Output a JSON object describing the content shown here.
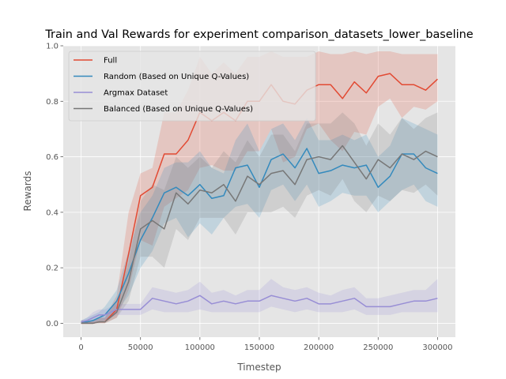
{
  "chart_data": {
    "type": "line",
    "title": "Train and Val Rewards for experiment comparison_datasets_lower_baseline",
    "xlabel": "Timestep",
    "ylabel": "Rewards",
    "xlim": [
      -15000,
      315000
    ],
    "ylim": [
      -0.05,
      1.0
    ],
    "xticks": [
      0,
      50000,
      100000,
      150000,
      200000,
      250000,
      300000
    ],
    "xtick_labels": [
      "0",
      "50000",
      "100000",
      "150000",
      "200000",
      "250000",
      "300000"
    ],
    "yticks": [
      0.0,
      0.2,
      0.4,
      0.6,
      0.8,
      1.0
    ],
    "ytick_labels": [
      "0.0",
      "0.2",
      "0.4",
      "0.6",
      "0.8",
      "1.0"
    ],
    "grid": true,
    "legend_position": "top-left",
    "x": [
      0,
      5000,
      10000,
      15000,
      20000,
      30000,
      40000,
      50000,
      60000,
      70000,
      80000,
      90000,
      100000,
      110000,
      120000,
      130000,
      140000,
      150000,
      160000,
      170000,
      180000,
      190000,
      200000,
      210000,
      220000,
      230000,
      240000,
      250000,
      260000,
      270000,
      280000,
      290000,
      300000
    ],
    "series": [
      {
        "name": "Full",
        "color": "#E24A33",
        "values": [
          0.0,
          0.0,
          0.0,
          0.005,
          0.005,
          0.05,
          0.25,
          0.46,
          0.49,
          0.61,
          0.61,
          0.66,
          0.76,
          0.73,
          0.76,
          0.73,
          0.8,
          0.8,
          0.86,
          0.8,
          0.79,
          0.84,
          0.86,
          0.86,
          0.81,
          0.87,
          0.83,
          0.89,
          0.9,
          0.86,
          0.86,
          0.84,
          0.88
        ],
        "lower": [
          0.0,
          0.0,
          0.0,
          0.0,
          0.0,
          0.02,
          0.12,
          0.3,
          0.28,
          0.42,
          0.45,
          0.48,
          0.56,
          0.57,
          0.55,
          0.55,
          0.62,
          0.62,
          0.7,
          0.58,
          0.6,
          0.7,
          0.72,
          0.66,
          0.62,
          0.69,
          0.68,
          0.78,
          0.81,
          0.74,
          0.78,
          0.77,
          0.8
        ],
        "upper": [
          0.01,
          0.01,
          0.01,
          0.02,
          0.02,
          0.1,
          0.4,
          0.54,
          0.56,
          0.76,
          0.76,
          0.84,
          0.96,
          0.9,
          0.94,
          0.9,
          0.96,
          0.96,
          0.98,
          0.96,
          0.96,
          0.96,
          0.98,
          0.97,
          0.97,
          0.98,
          0.97,
          0.98,
          0.98,
          0.97,
          0.97,
          0.97,
          0.97
        ]
      },
      {
        "name": "Random (Based on Unique Q-Values)",
        "color": "#348ABD",
        "values": [
          0.005,
          0.005,
          0.01,
          0.02,
          0.03,
          0.08,
          0.18,
          0.3,
          0.38,
          0.47,
          0.49,
          0.46,
          0.5,
          0.45,
          0.46,
          0.56,
          0.57,
          0.49,
          0.59,
          0.61,
          0.56,
          0.63,
          0.54,
          0.55,
          0.57,
          0.56,
          0.57,
          0.49,
          0.53,
          0.61,
          0.61,
          0.56,
          0.54
        ],
        "lower": [
          0.0,
          0.0,
          0.0,
          0.0,
          0.01,
          0.04,
          0.1,
          0.2,
          0.26,
          0.36,
          0.38,
          0.31,
          0.36,
          0.32,
          0.38,
          0.42,
          0.43,
          0.38,
          0.48,
          0.5,
          0.44,
          0.5,
          0.42,
          0.44,
          0.47,
          0.46,
          0.46,
          0.4,
          0.44,
          0.48,
          0.5,
          0.44,
          0.42
        ],
        "upper": [
          0.01,
          0.02,
          0.03,
          0.04,
          0.06,
          0.12,
          0.26,
          0.4,
          0.46,
          0.56,
          0.58,
          0.58,
          0.62,
          0.56,
          0.54,
          0.66,
          0.72,
          0.62,
          0.7,
          0.72,
          0.66,
          0.74,
          0.66,
          0.66,
          0.68,
          0.66,
          0.68,
          0.6,
          0.64,
          0.74,
          0.72,
          0.7,
          0.68
        ]
      },
      {
        "name": "Argmax Dataset",
        "color": "#988ED5",
        "values": [
          0.005,
          0.01,
          0.02,
          0.03,
          0.03,
          0.05,
          0.05,
          0.05,
          0.09,
          0.08,
          0.07,
          0.08,
          0.1,
          0.07,
          0.08,
          0.07,
          0.08,
          0.08,
          0.1,
          0.09,
          0.08,
          0.09,
          0.07,
          0.07,
          0.08,
          0.09,
          0.06,
          0.06,
          0.06,
          0.07,
          0.08,
          0.08,
          0.09
        ],
        "lower": [
          0.0,
          0.0,
          0.0,
          0.01,
          0.01,
          0.03,
          0.03,
          0.03,
          0.05,
          0.04,
          0.04,
          0.04,
          0.05,
          0.04,
          0.04,
          0.04,
          0.04,
          0.04,
          0.06,
          0.05,
          0.04,
          0.05,
          0.04,
          0.04,
          0.04,
          0.05,
          0.03,
          0.03,
          0.03,
          0.04,
          0.04,
          0.04,
          0.04
        ],
        "upper": [
          0.01,
          0.02,
          0.04,
          0.05,
          0.05,
          0.07,
          0.07,
          0.07,
          0.13,
          0.12,
          0.11,
          0.12,
          0.15,
          0.11,
          0.12,
          0.1,
          0.12,
          0.12,
          0.16,
          0.13,
          0.12,
          0.13,
          0.11,
          0.1,
          0.12,
          0.13,
          0.09,
          0.09,
          0.1,
          0.11,
          0.12,
          0.12,
          0.16
        ]
      },
      {
        "name": "Balanced (Based on Unique Q-Values)",
        "color": "#777777",
        "values": [
          0.0,
          0.0,
          0.0,
          0.005,
          0.005,
          0.04,
          0.15,
          0.34,
          0.37,
          0.34,
          0.47,
          0.43,
          0.48,
          0.47,
          0.5,
          0.44,
          0.53,
          0.5,
          0.54,
          0.55,
          0.5,
          0.59,
          0.6,
          0.59,
          0.64,
          0.58,
          0.52,
          0.59,
          0.56,
          0.61,
          0.59,
          0.62,
          0.6
        ],
        "lower": [
          0.0,
          0.0,
          0.0,
          0.0,
          0.0,
          0.02,
          0.08,
          0.24,
          0.24,
          0.2,
          0.34,
          0.3,
          0.38,
          0.38,
          0.38,
          0.32,
          0.4,
          0.4,
          0.4,
          0.42,
          0.38,
          0.46,
          0.48,
          0.46,
          0.52,
          0.44,
          0.4,
          0.46,
          0.44,
          0.48,
          0.47,
          0.5,
          0.46
        ],
        "upper": [
          0.01,
          0.01,
          0.01,
          0.02,
          0.02,
          0.08,
          0.22,
          0.44,
          0.5,
          0.48,
          0.6,
          0.56,
          0.6,
          0.56,
          0.62,
          0.58,
          0.66,
          0.6,
          0.68,
          0.68,
          0.62,
          0.72,
          0.72,
          0.72,
          0.76,
          0.72,
          0.64,
          0.72,
          0.68,
          0.74,
          0.7,
          0.74,
          0.76
        ]
      }
    ]
  }
}
